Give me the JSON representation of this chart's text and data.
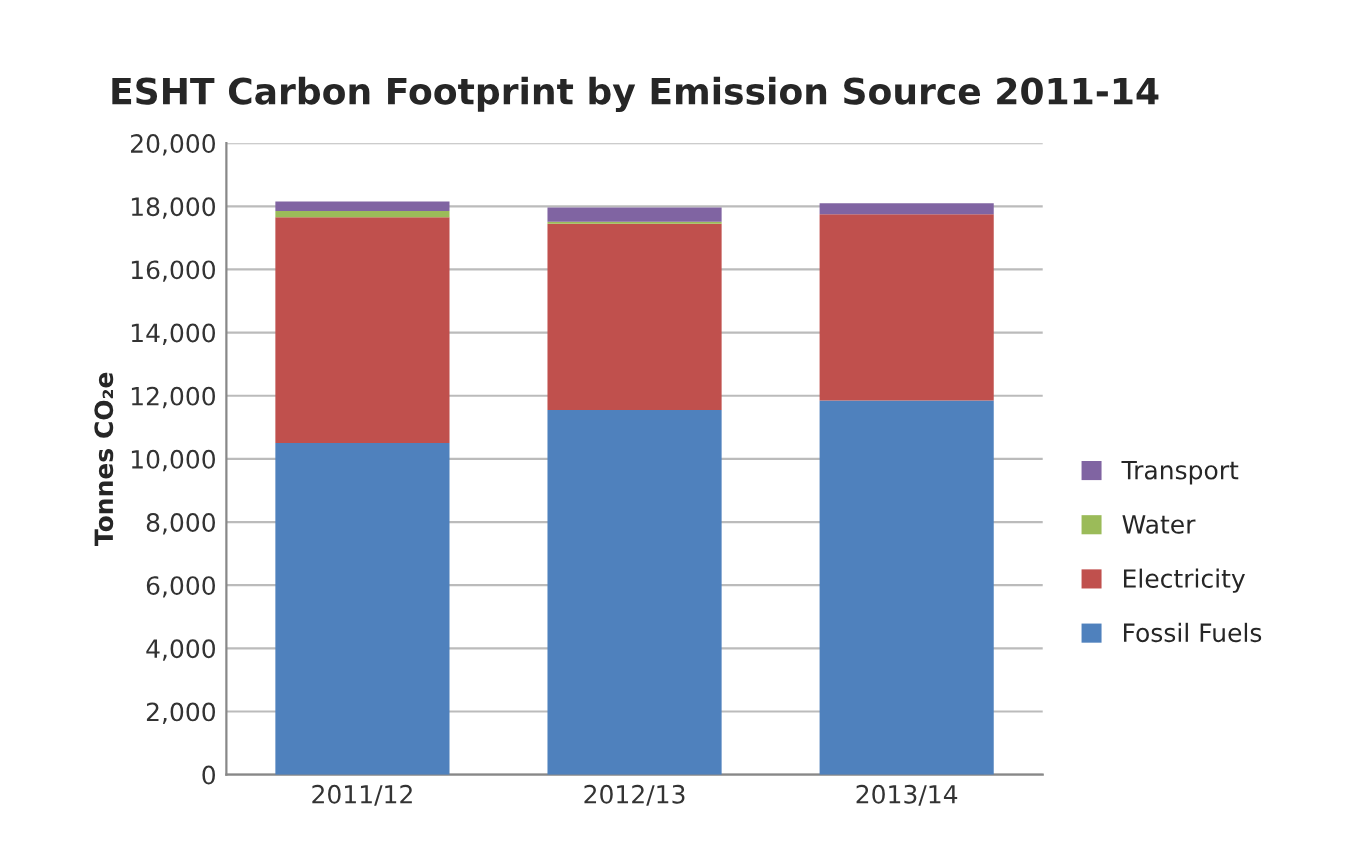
{
  "chart_data": {
    "type": "bar",
    "stacked": true,
    "title": "ESHT Carbon Footprint by Emission Source 2011-14",
    "ylabel": "Tonnes CO₂e",
    "categories": [
      "2011/12",
      "2012/13",
      "2013/14"
    ],
    "series": [
      {
        "name": "Fossil Fuels",
        "color": "#4f81bd",
        "values": [
          10500,
          11550,
          11850
        ]
      },
      {
        "name": "Electricity",
        "color": "#c0504d",
        "values": [
          7150,
          5900,
          5900
        ]
      },
      {
        "name": "Water",
        "color": "#9bbb59",
        "values": [
          200,
          60,
          null
        ]
      },
      {
        "name": "Transport",
        "color": "#8064a2",
        "values": [
          300,
          450,
          350
        ]
      }
    ],
    "ylim": [
      0,
      20000
    ],
    "yticks": [
      {
        "value": 0,
        "label": "0"
      },
      {
        "value": 2000,
        "label": "2,000"
      },
      {
        "value": 4000,
        "label": "4,000"
      },
      {
        "value": 6000,
        "label": "6,000"
      },
      {
        "value": 8000,
        "label": "8,000"
      },
      {
        "value": 10000,
        "label": "10,000"
      },
      {
        "value": 12000,
        "label": "12,000"
      },
      {
        "value": 14000,
        "label": "14,000"
      },
      {
        "value": 16000,
        "label": "16,000"
      },
      {
        "value": 18000,
        "label": "18,000"
      },
      {
        "value": 20000,
        "label": "20,000"
      }
    ],
    "grid": "y",
    "legend": "right"
  }
}
